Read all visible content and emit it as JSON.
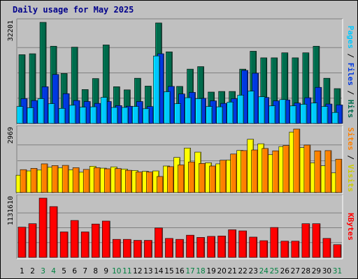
{
  "title": "Daily usage for May 2025",
  "colors": {
    "hits": "#006b4c",
    "files": "#0038e0",
    "pages": "#00c8ff",
    "visits": "#ffff00",
    "sites": "#ff8000",
    "kbytes": "#ff0000",
    "weekend_label": "#008040",
    "weekday_label": "#000000",
    "panel_bg": "#c0c0c0",
    "grid": "#808080"
  },
  "legend": {
    "top": {
      "pages": "Pages",
      "sep1": " / ",
      "files": "Files",
      "sep2": " / ",
      "hits": "Hits"
    },
    "middle": {
      "sites": "Sites",
      "sep": " / ",
      "visits": "Visits"
    },
    "bottom": {
      "kbytes": "KBytes"
    }
  },
  "chart_data": [
    {
      "type": "bar",
      "name_hint": "hits-files-pages",
      "categories": [
        "1",
        "2",
        "3",
        "4",
        "5",
        "6",
        "7",
        "8",
        "9",
        "10",
        "11",
        "12",
        "13",
        "14",
        "15",
        "16",
        "17",
        "18",
        "19",
        "20",
        "21",
        "22",
        "23",
        "24",
        "25",
        "26",
        "27",
        "28",
        "29",
        "30",
        "31"
      ],
      "weekend_days": [
        3,
        4,
        10,
        11,
        17,
        18,
        24,
        25,
        31
      ],
      "ymax_label": "32201",
      "ylim": [
        0,
        32201
      ],
      "series": [
        {
          "key": "hits",
          "values": [
            21900,
            22200,
            32201,
            24600,
            15900,
            24300,
            10800,
            14300,
            25000,
            11700,
            10700,
            14400,
            11900,
            32000,
            22800,
            11800,
            17300,
            18100,
            10000,
            10200,
            10200,
            17300,
            23000,
            20900,
            20900,
            22500,
            20900,
            22500,
            24600,
            14400,
            11100
          ]
        },
        {
          "key": "files",
          "values": [
            7900,
            7300,
            11700,
            15600,
            9500,
            7300,
            7000,
            6400,
            7000,
            5700,
            5500,
            7000,
            5400,
            22200,
            11800,
            9400,
            9900,
            8000,
            7200,
            6400,
            7900,
            16900,
            16000,
            8300,
            7200,
            7500,
            6500,
            8200,
            11500,
            6200,
            5900
          ]
        },
        {
          "key": "pages",
          "values": [
            5400,
            5000,
            7900,
            6300,
            4800,
            5800,
            5200,
            5300,
            8300,
            5100,
            5100,
            5400,
            4700,
            21500,
            10100,
            6300,
            8200,
            7900,
            5400,
            5300,
            6800,
            9000,
            10300,
            8500,
            5600,
            7600,
            5600,
            6100,
            6500,
            5400,
            3500
          ]
        }
      ]
    },
    {
      "type": "bar",
      "name_hint": "sites-visits",
      "categories": [
        "1",
        "2",
        "3",
        "4",
        "5",
        "6",
        "7",
        "8",
        "9",
        "10",
        "11",
        "12",
        "13",
        "14",
        "15",
        "16",
        "17",
        "18",
        "19",
        "20",
        "21",
        "22",
        "23",
        "24",
        "25",
        "26",
        "27",
        "28",
        "29",
        "30",
        "31"
      ],
      "ymax_label": "2969",
      "ylim": [
        0,
        2969
      ],
      "series": [
        {
          "key": "visits",
          "values": [
            810,
            1010,
            1050,
            1180,
            1150,
            1060,
            950,
            1230,
            1140,
            1200,
            1100,
            1030,
            990,
            1010,
            1240,
            1640,
            2080,
            1890,
            1390,
            1340,
            1520,
            1970,
            2490,
            2280,
            1770,
            2150,
            2830,
            2100,
            1390,
            1250,
            920
          ]
        },
        {
          "key": "sites",
          "values": [
            1070,
            1130,
            1340,
            1260,
            1270,
            1160,
            1080,
            1160,
            1110,
            1120,
            1040,
            960,
            960,
            750,
            1210,
            1290,
            1430,
            1360,
            1240,
            1510,
            1800,
            1960,
            1990,
            2060,
            1950,
            2200,
            2969,
            2220,
            1950,
            1960,
            1560
          ]
        }
      ]
    },
    {
      "type": "bar",
      "name_hint": "kbytes",
      "categories": [
        "1",
        "2",
        "3",
        "4",
        "5",
        "6",
        "7",
        "8",
        "9",
        "10",
        "11",
        "12",
        "13",
        "14",
        "15",
        "16",
        "17",
        "18",
        "19",
        "20",
        "21",
        "22",
        "23",
        "24",
        "25",
        "26",
        "27",
        "28",
        "29",
        "30",
        "31"
      ],
      "ymax_label": "1131610",
      "ylim": [
        0,
        1131610
      ],
      "series": [
        {
          "key": "kbytes",
          "values": [
            577000,
            643000,
            1131610,
            970000,
            486000,
            705000,
            486000,
            637000,
            693000,
            344000,
            344000,
            325000,
            325000,
            561000,
            362000,
            344000,
            424000,
            381000,
            401000,
            409000,
            527000,
            506000,
            387000,
            319000,
            571000,
            310000,
            310000,
            643000,
            643000,
            362000,
            243000
          ]
        }
      ]
    }
  ]
}
